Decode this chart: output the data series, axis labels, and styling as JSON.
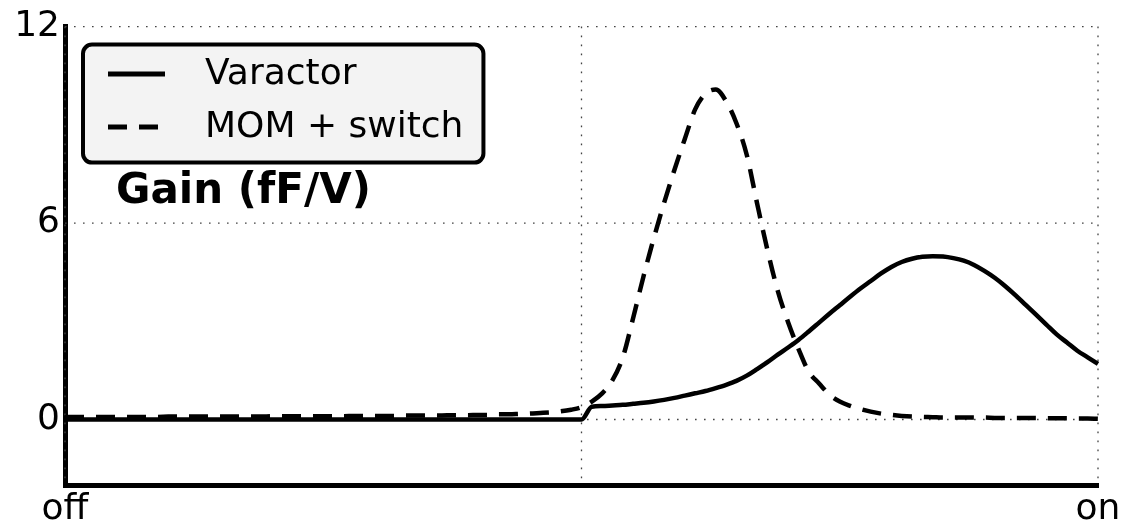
{
  "chart_data": {
    "type": "line",
    "ylabel": "Gain (fF/V)",
    "categories": [
      "off",
      null,
      null,
      null,
      null,
      null,
      null,
      null,
      null,
      null,
      null,
      null,
      null,
      null,
      null,
      null,
      null,
      null,
      null,
      null,
      null,
      null,
      null,
      null,
      null,
      null,
      null,
      null,
      null,
      null,
      null,
      null,
      null,
      null,
      null,
      null,
      null,
      null,
      null,
      null,
      null,
      null,
      null,
      null,
      null,
      null,
      null,
      null,
      null,
      null,
      null,
      null,
      null,
      null,
      null,
      null,
      null,
      null,
      null,
      null,
      null,
      null,
      null,
      null,
      null,
      null,
      null,
      null,
      null,
      null,
      null,
      null,
      null,
      null,
      null,
      null,
      null,
      null,
      null,
      null,
      null,
      null,
      null,
      null,
      null,
      null,
      null,
      null,
      null,
      null,
      null,
      null,
      null,
      null,
      null,
      null,
      null,
      null,
      null,
      null,
      "on"
    ],
    "ylim": [
      -2,
      12
    ],
    "yticks": [
      0,
      6,
      12
    ],
    "grid": true,
    "legend": "top left",
    "series": [
      {
        "name": "Varactor",
        "color": "#000000",
        "line_style": "solid",
        "values": [
          0,
          0,
          0,
          0,
          0,
          0,
          0,
          0,
          0,
          0,
          0,
          0,
          0,
          0,
          0,
          0,
          0,
          0,
          0,
          0,
          0,
          0,
          0,
          0,
          0,
          0,
          0,
          0,
          0,
          0,
          0,
          0,
          0,
          0,
          0,
          0,
          0,
          0,
          0,
          0,
          0,
          0,
          0,
          0,
          0,
          0,
          0,
          0,
          0,
          0,
          0,
          0.39,
          0.41,
          0.43,
          0.45,
          0.48,
          0.51,
          0.55,
          0.6,
          0.66,
          0.73,
          0.8,
          0.87,
          0.96,
          1.06,
          1.18,
          1.34,
          1.54,
          1.75,
          1.98,
          2.2,
          2.43,
          2.69,
          2.96,
          3.23,
          3.49,
          3.75,
          4.0,
          4.23,
          4.46,
          4.66,
          4.81,
          4.91,
          4.97,
          4.99,
          4.98,
          4.93,
          4.85,
          4.72,
          4.54,
          4.33,
          4.08,
          3.8,
          3.5,
          3.2,
          2.9,
          2.6,
          2.35,
          2.1,
          1.9,
          1.7
        ]
      },
      {
        "name": "MOM + switch",
        "color": "#000000",
        "line_style": "dashed",
        "values": [
          0.08,
          0.08,
          0.08,
          0.08,
          0.08,
          0.08,
          0.08,
          0.08,
          0.08,
          0.08,
          0.09,
          0.09,
          0.09,
          0.09,
          0.09,
          0.09,
          0.09,
          0.09,
          0.09,
          0.09,
          0.1,
          0.1,
          0.1,
          0.1,
          0.1,
          0.1,
          0.1,
          0.1,
          0.11,
          0.11,
          0.11,
          0.11,
          0.11,
          0.12,
          0.12,
          0.12,
          0.12,
          0.13,
          0.13,
          0.13,
          0.14,
          0.14,
          0.16,
          0.16,
          0.17,
          0.18,
          0.2,
          0.22,
          0.25,
          0.3,
          0.38,
          0.55,
          0.8,
          1.2,
          1.9,
          3.1,
          4.37,
          5.54,
          6.62,
          7.63,
          8.57,
          9.47,
          9.95,
          10.08,
          9.72,
          9.05,
          8.08,
          6.6,
          5.18,
          3.93,
          2.97,
          2.16,
          1.46,
          1.1,
          0.76,
          0.55,
          0.42,
          0.32,
          0.24,
          0.18,
          0.14,
          0.11,
          0.09,
          0.08,
          0.07,
          0.06,
          0.06,
          0.06,
          0.06,
          0.06,
          0.05,
          0.05,
          0.05,
          0.05,
          0.05,
          0.04,
          0.04,
          0.04,
          0.03,
          0.03,
          0.02
        ]
      }
    ]
  }
}
